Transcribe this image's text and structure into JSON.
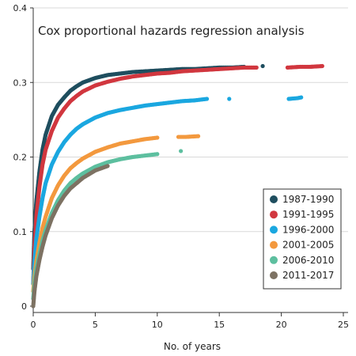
{
  "chart_data": {
    "type": "scatter",
    "title": "Cox proportional hazards regression analysis",
    "xlabel": "No. of years",
    "ylabel": "",
    "xlim": [
      0,
      25
    ],
    "ylim": [
      0,
      0.4
    ],
    "xticks": [
      0,
      5,
      10,
      15,
      20,
      25
    ],
    "xtick_labels": [
      "0",
      "5",
      "10",
      "15",
      "20",
      "25"
    ],
    "yticks": [
      0,
      0.1,
      0.2,
      0.3,
      0.4
    ],
    "ytick_labels": [
      "0",
      "0.1",
      "0.2",
      "0.3",
      "0.4"
    ],
    "grid": "horizontal",
    "legend_position": "bottom-right",
    "series": [
      {
        "name": "1987-1990",
        "color": "#1f4e5f",
        "x": [
          0,
          0.1,
          0.25,
          0.5,
          0.75,
          1,
          1.5,
          2,
          2.5,
          3,
          3.5,
          4,
          5,
          6,
          7,
          8,
          9,
          10,
          11,
          12,
          13,
          14,
          15,
          16,
          17,
          18.5
        ],
        "y": [
          0.05,
          0.1,
          0.14,
          0.18,
          0.21,
          0.23,
          0.255,
          0.27,
          0.28,
          0.289,
          0.295,
          0.3,
          0.306,
          0.31,
          0.312,
          0.314,
          0.315,
          0.316,
          0.317,
          0.318,
          0.318,
          0.319,
          0.32,
          0.32,
          0.321,
          0.322
        ]
      },
      {
        "name": "1991-1995",
        "color": "#d1373f",
        "x": [
          0,
          0.1,
          0.25,
          0.5,
          0.75,
          1,
          1.5,
          2,
          2.5,
          3,
          3.5,
          4,
          5,
          6,
          7,
          8,
          9,
          10,
          11,
          12,
          13,
          14,
          15,
          16,
          17,
          18,
          20.5,
          21.5,
          22.3,
          23.3
        ],
        "y": [
          0.03,
          0.08,
          0.12,
          0.16,
          0.19,
          0.21,
          0.235,
          0.253,
          0.265,
          0.275,
          0.282,
          0.288,
          0.296,
          0.301,
          0.305,
          0.308,
          0.31,
          0.312,
          0.313,
          0.315,
          0.316,
          0.317,
          0.318,
          0.319,
          0.32,
          0.32,
          0.32,
          0.321,
          0.321,
          0.322
        ]
      },
      {
        "name": "1996-2000",
        "color": "#1aa7e0",
        "x": [
          0,
          0.1,
          0.25,
          0.5,
          0.75,
          1,
          1.5,
          2,
          2.5,
          3,
          3.5,
          4,
          5,
          6,
          7,
          8,
          9,
          10,
          11,
          12,
          13,
          14,
          15.8,
          20.6,
          21.3,
          21.6
        ],
        "y": [
          0.03,
          0.06,
          0.09,
          0.12,
          0.145,
          0.165,
          0.19,
          0.207,
          0.22,
          0.23,
          0.238,
          0.244,
          0.253,
          0.259,
          0.263,
          0.266,
          0.269,
          0.271,
          0.273,
          0.275,
          0.276,
          0.278,
          0.278,
          0.278,
          0.279,
          0.28
        ]
      },
      {
        "name": "2001-2005",
        "color": "#f3993e",
        "x": [
          0,
          0.1,
          0.25,
          0.5,
          0.75,
          1,
          1.5,
          2,
          2.5,
          3,
          3.5,
          4,
          5,
          6,
          7,
          8,
          9,
          10,
          11.7,
          12.3,
          13.3
        ],
        "y": [
          0.02,
          0.04,
          0.06,
          0.085,
          0.105,
          0.12,
          0.145,
          0.162,
          0.175,
          0.185,
          0.192,
          0.198,
          0.207,
          0.213,
          0.218,
          0.221,
          0.224,
          0.226,
          0.227,
          0.227,
          0.228
        ]
      },
      {
        "name": "2006-2010",
        "color": "#5dbf9f",
        "x": [
          0,
          0.1,
          0.25,
          0.5,
          0.75,
          1,
          1.5,
          2,
          2.5,
          3,
          3.5,
          4,
          5,
          6,
          7,
          8,
          9,
          10,
          11.9
        ],
        "y": [
          0.01,
          0.03,
          0.05,
          0.07,
          0.088,
          0.102,
          0.125,
          0.142,
          0.155,
          0.165,
          0.172,
          0.178,
          0.187,
          0.193,
          0.197,
          0.2,
          0.202,
          0.204,
          0.208
        ]
      },
      {
        "name": "2011-2017",
        "color": "#7d7263",
        "x": [
          0,
          0.1,
          0.25,
          0.5,
          0.75,
          1,
          1.5,
          2,
          2.5,
          3,
          3.5,
          4,
          4.5,
          5,
          5.5,
          6
        ],
        "y": [
          0,
          0.02,
          0.04,
          0.062,
          0.08,
          0.095,
          0.118,
          0.135,
          0.148,
          0.158,
          0.165,
          0.172,
          0.177,
          0.182,
          0.185,
          0.188
        ]
      }
    ]
  }
}
